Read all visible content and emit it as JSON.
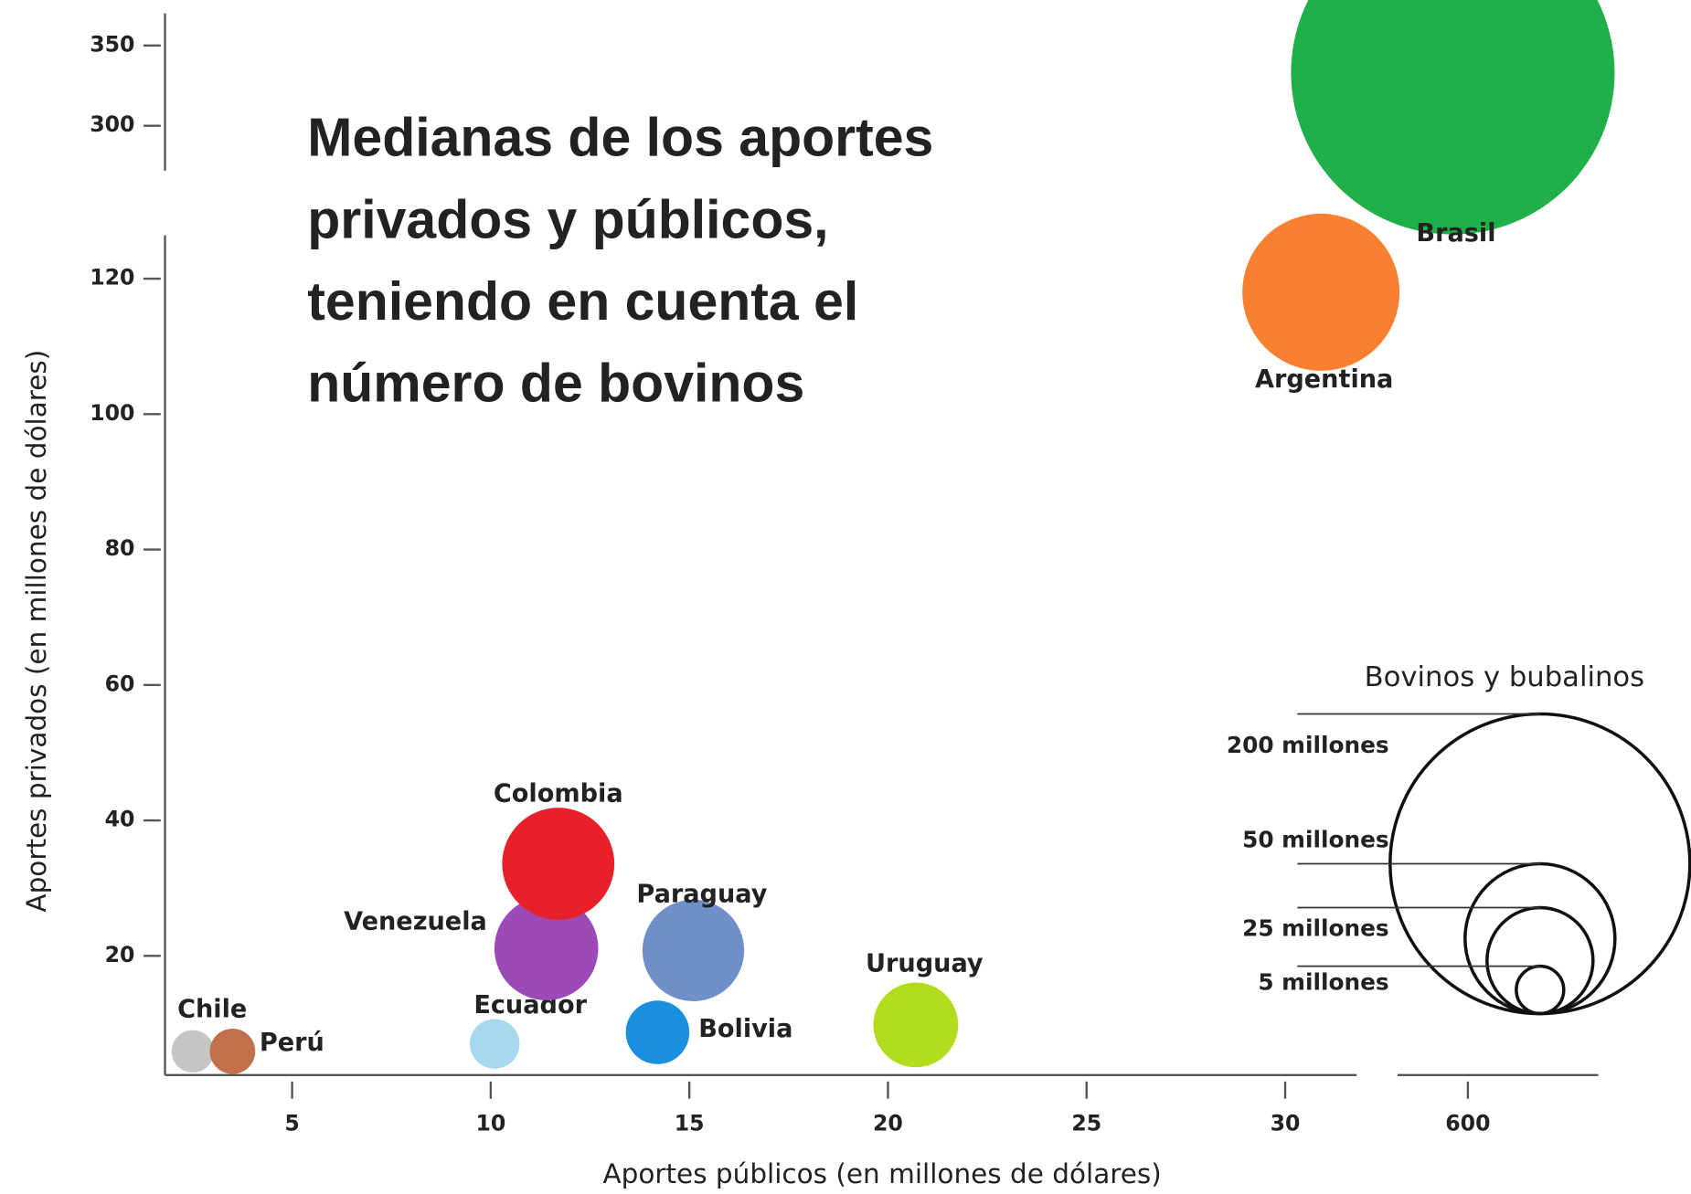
{
  "chart_data": {
    "type": "bubble",
    "title": [
      "Medianas de los aportes",
      "privados y públicos,",
      "teniendo en cuenta el",
      "número de bovinos"
    ],
    "x_label": "Aportes públicos (en millones de dólares)",
    "y_label": "Aportes privados (en millones de dólares)",
    "xlim": [
      1.8,
      31.8
    ],
    "xticks": [
      5,
      10,
      15,
      20,
      25,
      30
    ],
    "xlim_break": [
      593,
      613
    ],
    "xticks_break": [
      600
    ],
    "ylim": [
      2.4,
      126.4
    ],
    "yticks": [
      20,
      40,
      60,
      80,
      100,
      120
    ],
    "ylim_break": [
      272,
      370
    ],
    "yticks_break": [
      300,
      350
    ],
    "series": [
      {
        "name": "Chile",
        "color": "#c6c6c6",
        "x": 2.5,
        "y": 5.9,
        "size": 4
      },
      {
        "name": "Perú",
        "color": "#c0704a",
        "x": 3.5,
        "y": 5.9,
        "size": 4.6
      },
      {
        "name": "Ecuador",
        "color": "#a8d8ee",
        "x": 10.1,
        "y": 7,
        "size": 5.5
      },
      {
        "name": "Bolivia",
        "color": "#1a8fe0",
        "x": 14.2,
        "y": 8.7,
        "size": 9
      },
      {
        "name": "Uruguay",
        "color": "#b2dc1e",
        "x": 20.7,
        "y": 9.8,
        "size": 16
      },
      {
        "name": "Venezuela",
        "color": "#9b4ab8",
        "x": 11.4,
        "y": 21.1,
        "size": 24
      },
      {
        "name": "Paraguay",
        "color": "#6e8fc8",
        "x": 15.1,
        "y": 20.8,
        "size": 23
      },
      {
        "name": "Colombia",
        "color": "#e8202a",
        "x": 11.7,
        "y": 33.6,
        "size": 28
      },
      {
        "name": "Argentina",
        "color": "#f98030",
        "x": 30.9,
        "y": 118,
        "size": 55
      },
      {
        "name": "Brasil",
        "color": "#20b04a",
        "x": 598.5,
        "y": 333,
        "size": 233,
        "axis": "break"
      }
    ],
    "size_legend": {
      "title": "Bovinos y bubalinos",
      "values": [
        200,
        50,
        25,
        5
      ],
      "value_labels": [
        "200 millones",
        "50 millones",
        "25 millones",
        "5 millones"
      ]
    }
  }
}
